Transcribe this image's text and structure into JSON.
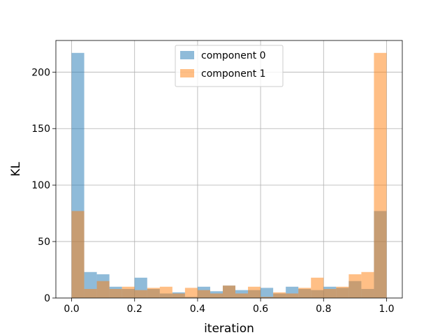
{
  "chart_data": {
    "type": "bar",
    "subtype": "overlapping-histogram",
    "title": "",
    "xlabel": "iteration",
    "ylabel": "KL",
    "xlim": [
      -0.05,
      1.05
    ],
    "ylim": [
      0,
      228
    ],
    "xticks": [
      "0.0",
      "0.2",
      "0.4",
      "0.6",
      "0.8",
      "1.0"
    ],
    "yticks": [
      "0",
      "50",
      "100",
      "150",
      "200"
    ],
    "grid": true,
    "legend_position": "top-center",
    "bin_edges": [
      0.0,
      0.04,
      0.08,
      0.12,
      0.16,
      0.2,
      0.24,
      0.28,
      0.32,
      0.36,
      0.4,
      0.44,
      0.48,
      0.52,
      0.56,
      0.6,
      0.64,
      0.68,
      0.72,
      0.76,
      0.8,
      0.84,
      0.88,
      0.92,
      0.96,
      1.0
    ],
    "series": [
      {
        "name": "component 0",
        "color": "#1f77b4",
        "values": [
          217,
          23,
          21,
          10,
          8,
          18,
          8,
          4,
          5,
          1,
          10,
          6,
          11,
          7,
          7,
          9,
          4,
          10,
          8,
          7,
          10,
          9,
          15,
          8,
          77
        ]
      },
      {
        "name": "component 1",
        "color": "#ff7f0e",
        "values": [
          77,
          8,
          15,
          8,
          10,
          7,
          9,
          10,
          4,
          9,
          7,
          4,
          11,
          4,
          10,
          1,
          5,
          4,
          9,
          18,
          8,
          10,
          21,
          23,
          217
        ]
      }
    ]
  }
}
